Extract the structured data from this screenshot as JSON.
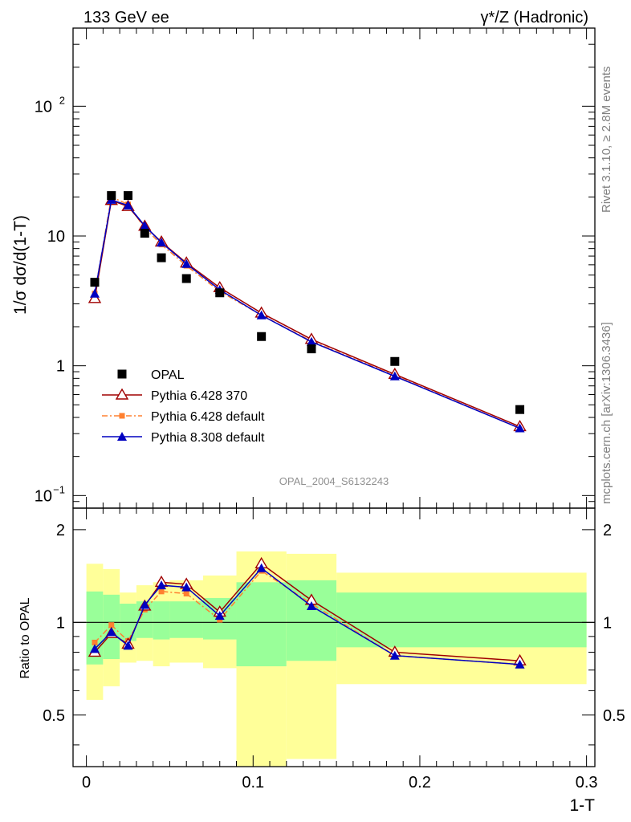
{
  "header": {
    "left": "133 GeV ee",
    "right": "γ*/Z (Hadronic)"
  },
  "side_text": {
    "rivet": "Rivet 3.1.10, ≥ 2.8M events",
    "mcplots": "mcplots.cern.ch [arXiv:1306.3436]"
  },
  "analysis_label": "OPAL_2004_S6132243",
  "colors": {
    "opal": "#000000",
    "p6_370": "#a00000",
    "p6_default": "#ff8030",
    "p8_default": "#0000c0",
    "band_stat": "#99ff99",
    "band_total": "#ffff99"
  },
  "chart_data": [
    {
      "type": "scatter",
      "panel": "main",
      "ylabel": "1/σ dσ/d(1-T)",
      "xlabel": "",
      "xlim": [
        -0.008,
        0.305
      ],
      "ylim": [
        0.08,
        400
      ],
      "yscale": "log",
      "yticks": [
        {
          "value": 100,
          "label": "10",
          "exp": "2"
        },
        {
          "value": 10,
          "label": "10",
          "exp": ""
        },
        {
          "value": 1,
          "label": "1",
          "exp": ""
        },
        {
          "value": 0.1,
          "label": "10",
          "exp": "−1"
        }
      ],
      "legend_position": "bottom-left",
      "series": [
        {
          "name": "OPAL",
          "style": "square",
          "x": [
            0.005,
            0.015,
            0.025,
            0.035,
            0.045,
            0.06,
            0.08,
            0.105,
            0.135,
            0.185,
            0.26
          ],
          "y": [
            4.4,
            20.5,
            20.5,
            10.5,
            6.8,
            4.7,
            3.65,
            1.68,
            1.35,
            1.08,
            0.46
          ]
        },
        {
          "name": "Pythia 6.428 370",
          "style": "open-triangle",
          "x": [
            0.005,
            0.015,
            0.025,
            0.035,
            0.045,
            0.06,
            0.08,
            0.105,
            0.135,
            0.185,
            0.26
          ],
          "y": [
            3.3,
            18.8,
            16.9,
            11.9,
            9.0,
            6.2,
            4.0,
            2.55,
            1.6,
            0.86,
            0.34
          ]
        },
        {
          "name": "Pythia 6.428 default",
          "style": "small-square-dashed",
          "x": [
            0.005,
            0.015,
            0.025,
            0.035,
            0.045,
            0.06,
            0.08,
            0.105,
            0.135,
            0.185,
            0.26
          ],
          "y": [
            3.6,
            20.0,
            17.5,
            11.5,
            8.6,
            5.9,
            3.75,
            2.45,
            1.55,
            0.84,
            0.33
          ]
        },
        {
          "name": "Pythia 8.308 default",
          "style": "filled-triangle",
          "x": [
            0.005,
            0.015,
            0.025,
            0.035,
            0.045,
            0.06,
            0.08,
            0.105,
            0.135,
            0.185,
            0.26
          ],
          "y": [
            3.6,
            19.0,
            17.2,
            12.0,
            8.9,
            6.1,
            3.85,
            2.45,
            1.53,
            0.83,
            0.33
          ]
        }
      ]
    },
    {
      "type": "line",
      "panel": "ratio",
      "ylabel": "Ratio to OPAL",
      "xlabel": "1-T",
      "xlim": [
        -0.008,
        0.305
      ],
      "ylim": [
        0.34,
        2.35
      ],
      "yscale": "log",
      "yticks": [
        {
          "value": 2,
          "label": "2"
        },
        {
          "value": 1,
          "label": "1"
        },
        {
          "value": 0.5,
          "label": "0.5"
        }
      ],
      "xticks": [
        {
          "value": 0,
          "label": "0"
        },
        {
          "value": 0.1,
          "label": "0.1"
        },
        {
          "value": 0.2,
          "label": "0.2"
        },
        {
          "value": 0.3,
          "label": "0.3"
        }
      ],
      "bands": {
        "bin_edges": [
          0,
          0.01,
          0.02,
          0.03,
          0.04,
          0.05,
          0.07,
          0.09,
          0.12,
          0.15,
          0.3
        ],
        "total_hi": [
          1.55,
          1.49,
          1.25,
          1.32,
          1.35,
          1.37,
          1.42,
          1.7,
          1.67,
          1.45,
          1.45
        ],
        "total_lo": [
          0.56,
          0.62,
          0.74,
          0.75,
          0.72,
          0.74,
          0.71,
          0.33,
          0.36,
          0.63,
          0.63
        ],
        "stat_hi": [
          1.26,
          1.23,
          1.15,
          1.17,
          1.17,
          1.17,
          1.2,
          1.35,
          1.37,
          1.25,
          1.25
        ],
        "stat_lo": [
          0.73,
          0.76,
          0.87,
          0.89,
          0.88,
          0.89,
          0.88,
          0.72,
          0.75,
          0.83,
          0.83
        ]
      },
      "series": [
        {
          "name": "Pythia 6.428 370",
          "x": [
            0.005,
            0.015,
            0.025,
            0.035,
            0.045,
            0.06,
            0.08,
            0.105,
            0.135,
            0.185,
            0.26
          ],
          "y": [
            0.8,
            0.92,
            0.85,
            1.13,
            1.35,
            1.33,
            1.08,
            1.55,
            1.18,
            0.8,
            0.75
          ]
        },
        {
          "name": "Pythia 6.428 default",
          "x": [
            0.005,
            0.015,
            0.025,
            0.035,
            0.045,
            0.06,
            0.08,
            0.105,
            0.135,
            0.185,
            0.26
          ],
          "y": [
            0.86,
            0.98,
            0.87,
            1.1,
            1.26,
            1.24,
            1.02,
            1.47,
            1.15,
            0.78,
            0.73
          ]
        },
        {
          "name": "Pythia 8.308 default",
          "x": [
            0.005,
            0.015,
            0.025,
            0.035,
            0.045,
            0.06,
            0.08,
            0.105,
            0.135,
            0.185,
            0.26
          ],
          "y": [
            0.82,
            0.93,
            0.84,
            1.14,
            1.32,
            1.3,
            1.05,
            1.5,
            1.13,
            0.78,
            0.73
          ]
        }
      ]
    }
  ]
}
